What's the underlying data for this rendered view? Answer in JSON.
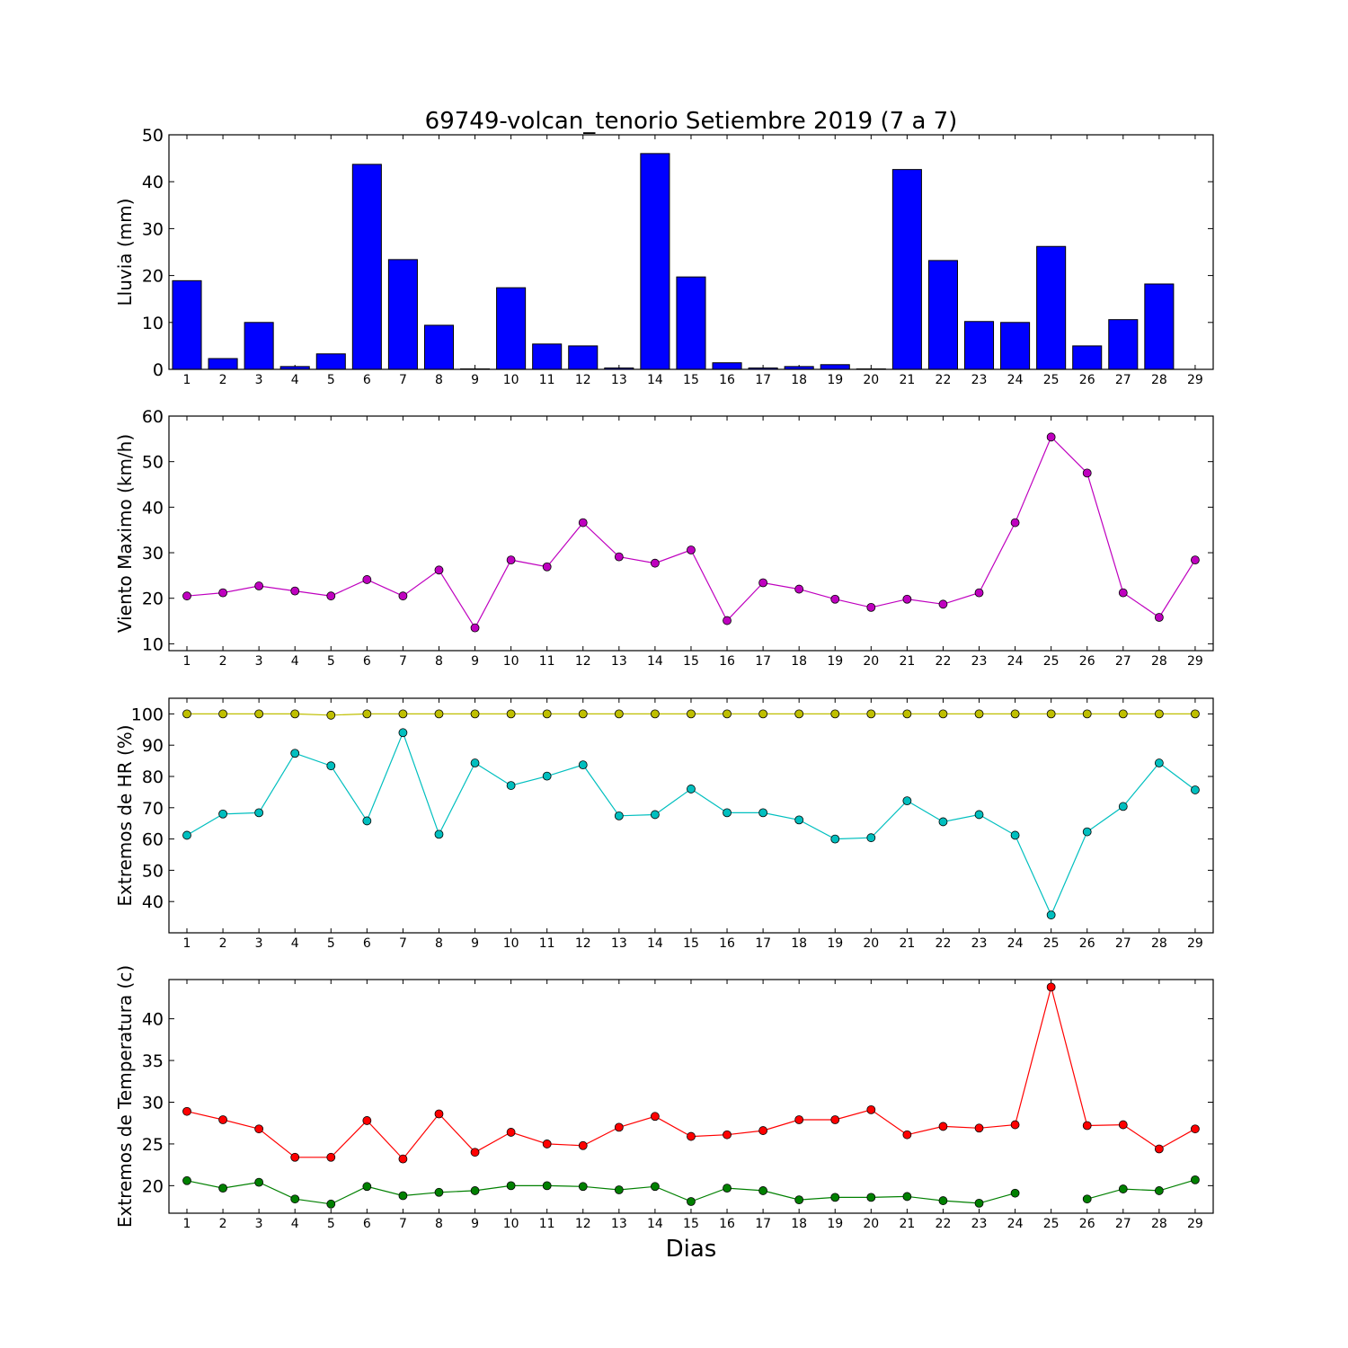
{
  "chart_data": {
    "title": "69749-volcan_tenorio Setiembre 2019  (7 a 7)",
    "xlabel": "Dias",
    "days": [
      1,
      2,
      3,
      4,
      5,
      6,
      7,
      8,
      9,
      10,
      11,
      12,
      13,
      14,
      15,
      16,
      17,
      18,
      19,
      20,
      21,
      22,
      23,
      24,
      25,
      26,
      27,
      28,
      29
    ],
    "panels": [
      {
        "type": "bar",
        "ylabel": "Lluvia (mm)",
        "ylim": [
          0,
          50
        ],
        "yticks": [
          0,
          10,
          20,
          30,
          40,
          50
        ],
        "series": [
          {
            "color": "#0000ff",
            "values": [
              18.9,
              2.3,
              10.0,
              0.6,
              3.3,
              43.7,
              23.4,
              9.4,
              0.1,
              17.4,
              5.4,
              5.0,
              0.3,
              46.0,
              19.7,
              1.4,
              0.3,
              0.6,
              1.0,
              0.1,
              42.6,
              23.2,
              10.2,
              10.0,
              26.2,
              5.0,
              10.6,
              18.2,
              0.0
            ]
          }
        ]
      },
      {
        "type": "line",
        "ylabel": "Viento Maximo (km/h)",
        "ylim": [
          8.5,
          60
        ],
        "yticks": [
          10,
          20,
          30,
          40,
          50,
          60
        ],
        "series": [
          {
            "color": "#bf00bf",
            "values": [
              20.5,
              21.2,
              22.7,
              21.6,
              20.5,
              24.1,
              20.5,
              26.2,
              13.5,
              28.4,
              26.9,
              36.6,
              29.1,
              27.7,
              30.6,
              15.1,
              23.4,
              22.0,
              19.8,
              18.0,
              19.8,
              18.7,
              21.2,
              36.6,
              55.4,
              47.5,
              21.2,
              15.8,
              28.4
            ]
          }
        ]
      },
      {
        "type": "line",
        "ylabel": "Extremos de HR (%)",
        "ylim": [
          30,
          105
        ],
        "yticks": [
          40,
          50,
          60,
          70,
          80,
          90,
          100
        ],
        "series": [
          {
            "color": "#bfbf00",
            "values": [
              100,
              100,
              100,
              100,
              99.6,
              100,
              100,
              100,
              100,
              100,
              100,
              100,
              100,
              100,
              100,
              100,
              100,
              100,
              100,
              100,
              100,
              100,
              100,
              100,
              100,
              100,
              100,
              100,
              100
            ]
          },
          {
            "color": "#00bfbf",
            "values": [
              61.2,
              68.0,
              68.4,
              87.4,
              83.4,
              65.8,
              94.0,
              61.5,
              84.3,
              77.1,
              80.1,
              83.7,
              67.4,
              67.8,
              76.0,
              68.4,
              68.4,
              66.1,
              60.0,
              60.4,
              72.2,
              65.5,
              67.8,
              61.2,
              35.7,
              62.3,
              70.4,
              84.3,
              75.7
            ]
          }
        ]
      },
      {
        "type": "line",
        "ylabel": "Extremos de Temperatura (c)",
        "ylim": [
          16.7,
          44.7
        ],
        "yticks": [
          20,
          25,
          30,
          35,
          40
        ],
        "series": [
          {
            "color": "#ff0000",
            "values": [
              28.9,
              27.9,
              26.8,
              23.4,
              23.4,
              27.8,
              23.2,
              28.6,
              24.0,
              26.4,
              25.0,
              24.8,
              27.0,
              28.3,
              25.9,
              26.1,
              26.6,
              27.9,
              27.9,
              29.1,
              26.1,
              27.1,
              26.9,
              27.3,
              43.8,
              27.2,
              27.3,
              24.4,
              26.8
            ]
          },
          {
            "color": "#008000",
            "values": [
              20.6,
              19.7,
              20.4,
              18.4,
              17.8,
              19.9,
              18.8,
              19.2,
              19.4,
              20.0,
              20.0,
              19.9,
              19.5,
              19.9,
              18.1,
              19.7,
              19.4,
              18.3,
              18.6,
              18.6,
              18.7,
              18.2,
              17.9,
              19.1,
              null,
              18.4,
              19.6,
              19.4,
              20.7
            ]
          }
        ]
      }
    ]
  }
}
